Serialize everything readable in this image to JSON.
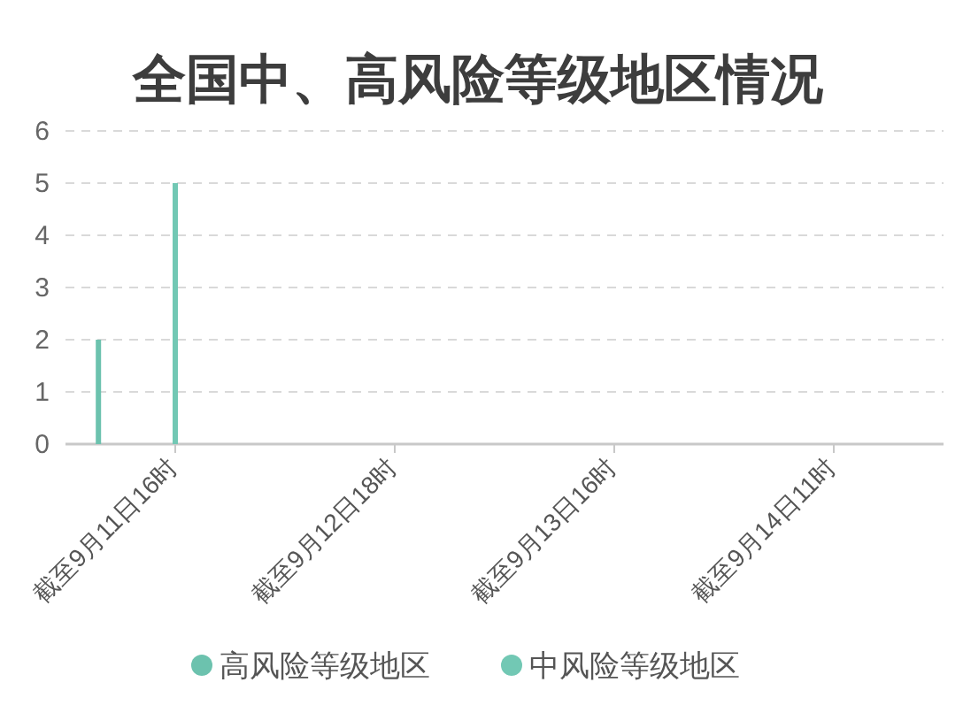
{
  "chart_data": {
    "type": "bar",
    "title": "全国中、高风险等级地区情况",
    "categories": [
      "截至9月11日16时",
      "截至9月12日18时",
      "截至9月13日16时",
      "截至9月14日11时"
    ],
    "series": [
      {
        "name": "高风险等级地区",
        "color": "#6cc2ae",
        "values": [
          2,
          null,
          null,
          null
        ]
      },
      {
        "name": "中风险等级地区",
        "color": "#72c8b4",
        "values": [
          5,
          null,
          null,
          null
        ]
      }
    ],
    "ylim": [
      0,
      6
    ],
    "yticks": [
      0,
      1,
      2,
      3,
      4,
      5,
      6
    ],
    "grid": "y",
    "legend": "bottom"
  }
}
